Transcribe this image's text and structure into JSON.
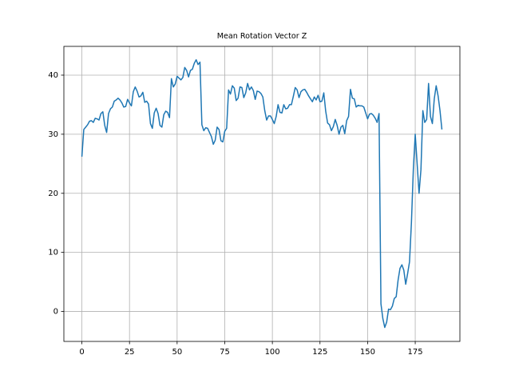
{
  "chart_data": {
    "type": "line",
    "title": "Mean Rotation Vector Z",
    "x": [
      0,
      1,
      2,
      3,
      4,
      5,
      6,
      7,
      8,
      9,
      10,
      11,
      12,
      13,
      14,
      15,
      16,
      17,
      18,
      19,
      20,
      21,
      22,
      23,
      24,
      25,
      26,
      27,
      28,
      29,
      30,
      31,
      32,
      33,
      34,
      35,
      36,
      37,
      38,
      39,
      40,
      41,
      42,
      43,
      44,
      45,
      46,
      47,
      48,
      49,
      50,
      51,
      52,
      53,
      54,
      55,
      56,
      57,
      58,
      59,
      60,
      61,
      62,
      63,
      64,
      65,
      66,
      67,
      68,
      69,
      70,
      71,
      72,
      73,
      74,
      75,
      76,
      77,
      78,
      79,
      80,
      81,
      82,
      83,
      84,
      85,
      86,
      87,
      88,
      89,
      90,
      91,
      92,
      93,
      94,
      95,
      96,
      97,
      98,
      99,
      100,
      101,
      102,
      103,
      104,
      105,
      106,
      107,
      108,
      109,
      110,
      111,
      112,
      113,
      114,
      115,
      116,
      117,
      118,
      119,
      120,
      121,
      122,
      123,
      124,
      125,
      126,
      127,
      128,
      129,
      130,
      131,
      132,
      133,
      134,
      135,
      136,
      137,
      138,
      139,
      140,
      141,
      142,
      143,
      144,
      145,
      146,
      147,
      148,
      149,
      150,
      151,
      152,
      153,
      154,
      155,
      156,
      157,
      158,
      159,
      160,
      161,
      162,
      163,
      164,
      165,
      166,
      167,
      168,
      169,
      170,
      171,
      172,
      173,
      174,
      175,
      176,
      177,
      178,
      179,
      180,
      181,
      182,
      183,
      184,
      185,
      186,
      187,
      188,
      189
    ],
    "series": [
      {
        "color": "#1f77b4",
        "values": [
          26.2,
          30.8,
          31.2,
          31.6,
          32.2,
          32.3,
          32.0,
          32.7,
          32.6,
          32.4,
          33.5,
          33.8,
          31.5,
          30.3,
          33.5,
          34.3,
          34.6,
          35.6,
          35.8,
          36.1,
          35.8,
          35.3,
          34.6,
          34.7,
          35.9,
          35.3,
          34.8,
          37.2,
          38.0,
          37.3,
          36.3,
          36.5,
          37.1,
          35.4,
          35.6,
          35.1,
          31.8,
          31.0,
          33.6,
          34.4,
          33.5,
          31.5,
          31.2,
          33.3,
          33.9,
          33.7,
          32.8,
          39.4,
          38.0,
          38.5,
          39.8,
          39.5,
          39.2,
          39.6,
          41.3,
          40.8,
          39.7,
          40.8,
          41.0,
          42.0,
          42.6,
          41.8,
          42.2,
          31.6,
          30.6,
          31.1,
          31.0,
          30.3,
          29.6,
          28.3,
          29.0,
          31.2,
          30.8,
          28.9,
          28.7,
          30.5,
          31.0,
          37.5,
          36.8,
          38.2,
          37.8,
          35.7,
          36.1,
          38.0,
          37.9,
          36.2,
          37.0,
          38.6,
          37.5,
          38.0,
          37.4,
          35.9,
          37.3,
          37.2,
          36.9,
          36.3,
          34.0,
          32.4,
          33.1,
          33.1,
          32.5,
          31.8,
          33.0,
          35.0,
          33.7,
          33.6,
          35.0,
          34.3,
          34.4,
          35.0,
          35.0,
          36.4,
          37.9,
          37.5,
          36.2,
          37.2,
          37.5,
          37.6,
          37.1,
          36.5,
          36.0,
          35.5,
          36.3,
          35.8,
          36.6,
          35.5,
          35.6,
          37.0,
          33.9,
          31.9,
          31.6,
          30.6,
          31.3,
          32.5,
          31.5,
          30.0,
          31.2,
          31.5,
          30.1,
          32.3,
          33.0,
          37.6,
          36.1,
          36.0,
          34.6,
          34.9,
          34.8,
          34.8,
          34.6,
          33.6,
          32.6,
          33.4,
          33.5,
          33.2,
          32.7,
          32.0,
          33.5,
          1.3,
          -1.2,
          -2.7,
          -1.8,
          0.4,
          0.3,
          0.9,
          2.2,
          2.5,
          5.3,
          7.3,
          7.9,
          7.0,
          4.6,
          6.4,
          8.4,
          15.0,
          24.0,
          30.0,
          25.0,
          20.0,
          24.0,
          34.0,
          32.0,
          32.5,
          38.6,
          33.0,
          31.8,
          36.0,
          38.2,
          36.5,
          34.0,
          30.8
        ]
      }
    ],
    "xlim": [
      -9.45,
      198.45
    ],
    "ylim": [
      -5.07,
      44.87
    ],
    "xticks": [
      0,
      25,
      50,
      75,
      100,
      125,
      150,
      175
    ],
    "yticks": [
      0,
      10,
      20,
      30,
      40
    ],
    "grid": true
  }
}
